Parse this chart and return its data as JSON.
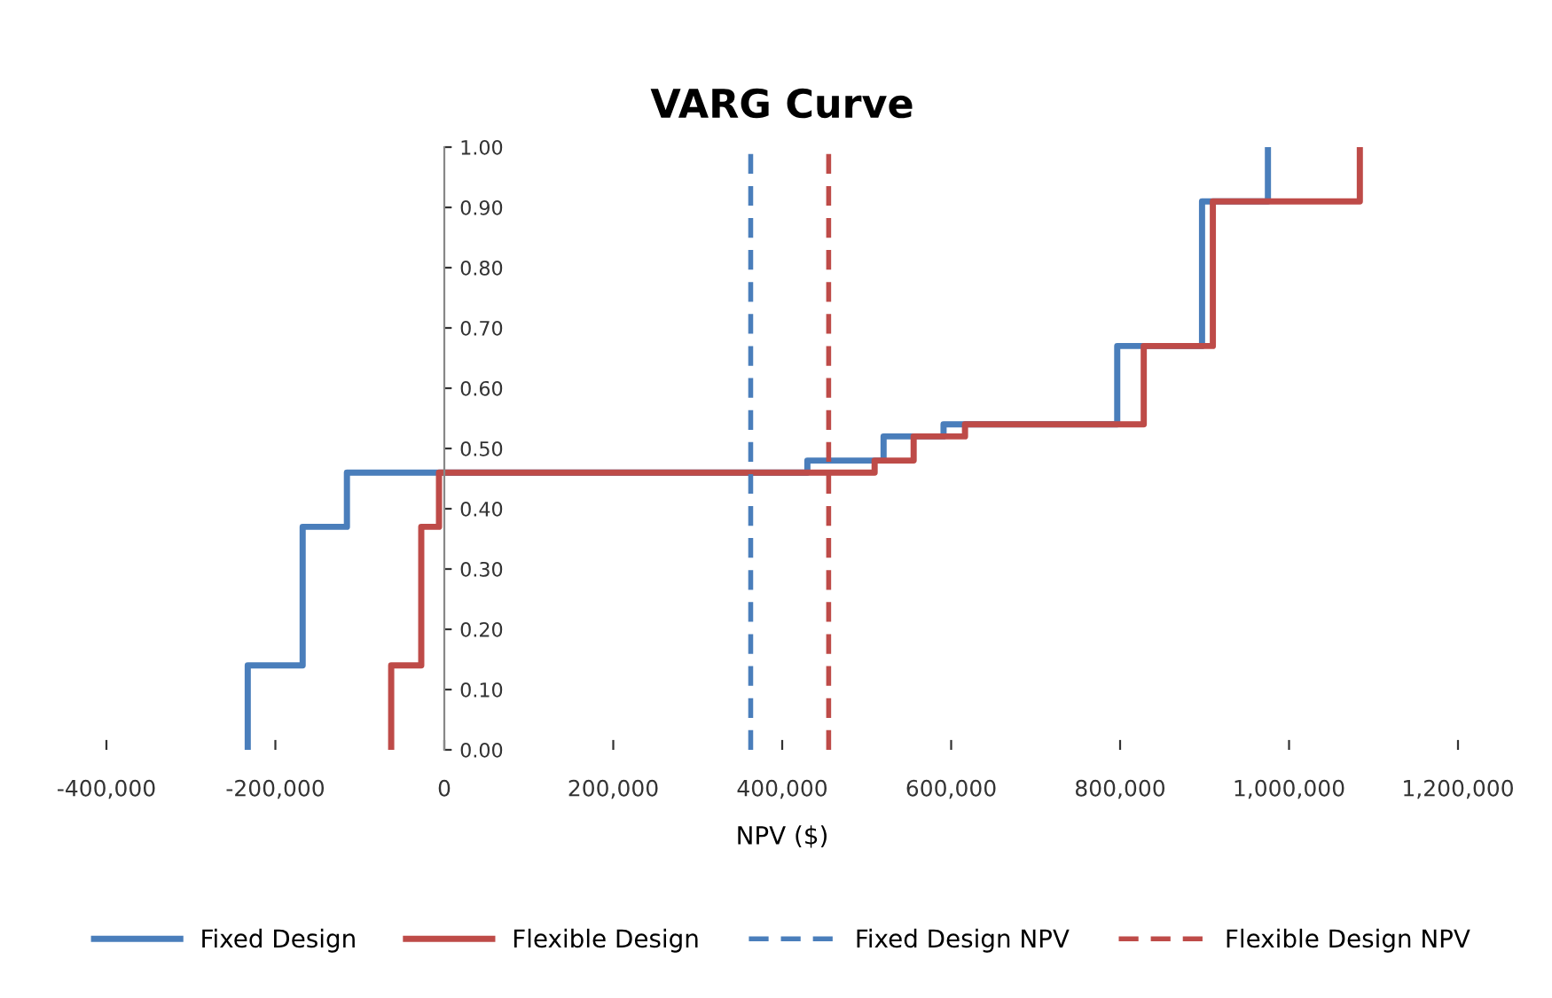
{
  "chart_data": {
    "type": "step",
    "title": "VARG Curve",
    "xlabel": "NPV ($)",
    "series": [
      {
        "name": "Fixed Design",
        "color": "#4a7ebb",
        "x": [
          -232700,
          -232700,
          -167700,
          -115300,
          429800,
          520000,
          591000,
          796600,
          897000,
          975000
        ],
        "values": [
          0,
          0.14,
          0.37,
          0.46,
          0.48,
          0.52,
          0.54,
          0.67,
          0.91,
          1.0
        ]
      },
      {
        "name": "Flexible Design",
        "color": "#be4b48",
        "x": [
          -62900,
          -62900,
          -27300,
          -6300,
          509400,
          555600,
          616400,
          828000,
          909800,
          1083800
        ],
        "values": [
          0,
          0.14,
          0.37,
          0.46,
          0.48,
          0.52,
          0.54,
          0.67,
          0.91,
          1.0
        ]
      }
    ],
    "ref_lines": [
      {
        "axis": "x",
        "value": 362700,
        "label": "Fixed Design NPV",
        "color": "#4a7ebb",
        "line_style": "dashed"
      },
      {
        "axis": "x",
        "value": 455000,
        "label": "Flexible Design NPV",
        "color": "#be4b48",
        "line_style": "dashed"
      }
    ],
    "xlim": [
      -400000,
      1200000
    ],
    "ylim": [
      0,
      1
    ],
    "xticks": [
      {
        "value": -400000,
        "label": "-400,000"
      },
      {
        "value": -200000,
        "label": "-200,000"
      },
      0,
      {
        "value": 200000,
        "label": "200,000"
      },
      {
        "value": 400000,
        "label": "400,000"
      },
      {
        "value": 600000,
        "label": "600,000"
      },
      {
        "value": 800000,
        "label": "800,000"
      },
      {
        "value": 1000000,
        "label": "1,000,000"
      },
      {
        "value": 1200000,
        "label": "1,200,000"
      }
    ],
    "yticks": [
      {
        "value": 0,
        "label": "0.00"
      },
      {
        "value": 0.1,
        "label": "0.10"
      },
      {
        "value": 0.2,
        "label": "0.20"
      },
      {
        "value": 0.3,
        "label": "0.30"
      },
      {
        "value": 0.4,
        "label": "0.40"
      },
      {
        "value": 0.5,
        "label": "0.50"
      },
      {
        "value": 0.6,
        "label": "0.60"
      },
      {
        "value": 0.7,
        "label": "0.70"
      },
      {
        "value": 0.8,
        "label": "0.80"
      },
      {
        "value": 0.9,
        "label": "0.90"
      },
      {
        "value": 1.0,
        "label": "1.00"
      }
    ],
    "grid": false,
    "legend": "bottom",
    "line_style": "solid",
    "marker": "none"
  }
}
